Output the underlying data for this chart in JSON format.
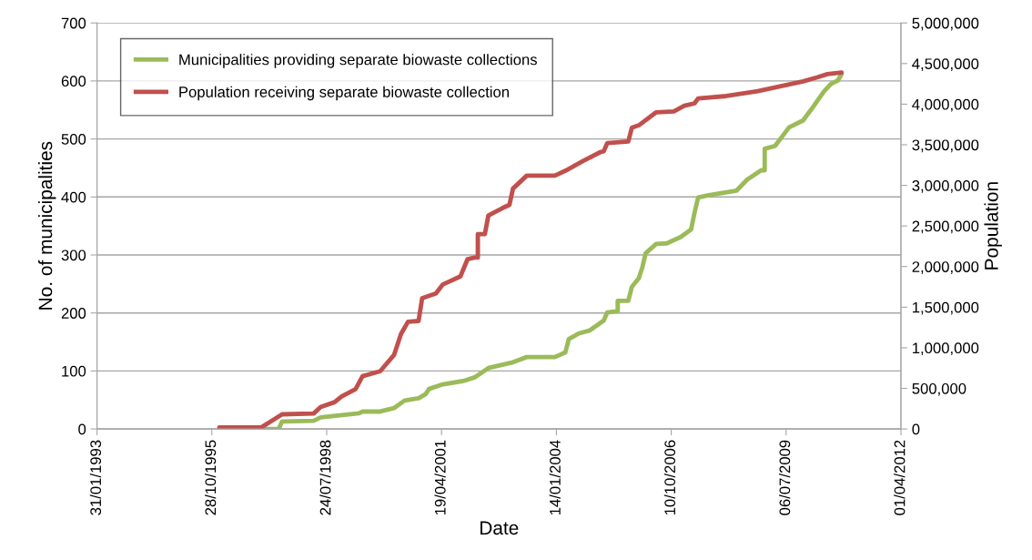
{
  "chart_data": {
    "type": "line",
    "xlabel": "Date",
    "ylabel": "No. of municipalities",
    "y2label": "Population",
    "xlim": [
      "1993-01-31",
      "2012-04-01"
    ],
    "xticks": [
      {
        "value": "1993-01-31",
        "label": "31/01/1993"
      },
      {
        "value": "1995-10-28",
        "label": "28/10/1995"
      },
      {
        "value": "1998-07-24",
        "label": "24/07/1998"
      },
      {
        "value": "2001-04-19",
        "label": "19/04/2001"
      },
      {
        "value": "2004-01-14",
        "label": "14/01/2004"
      },
      {
        "value": "2006-10-10",
        "label": "10/10/2006"
      },
      {
        "value": "2009-07-06",
        "label": "06/07/2009"
      },
      {
        "value": "2012-04-01",
        "label": "01/04/2012"
      }
    ],
    "ylim": [
      0,
      700
    ],
    "yticks": [
      0,
      100,
      200,
      300,
      400,
      500,
      600,
      700
    ],
    "y2lim": [
      0,
      5000000
    ],
    "y2ticks": [
      0,
      {
        "value": 500000,
        "label": "500,000"
      },
      {
        "value": 1000000,
        "label": "1,000,000"
      },
      {
        "value": 1500000,
        "label": "1,500,000"
      },
      {
        "value": 2000000,
        "label": "2,000,000"
      },
      {
        "value": 2500000,
        "label": "2,500,000"
      },
      {
        "value": 3000000,
        "label": "3,000,000"
      },
      {
        "value": 3500000,
        "label": "3,500,000"
      },
      {
        "value": 4000000,
        "label": "4,000,000"
      },
      {
        "value": 4500000,
        "label": "4,500,000"
      },
      {
        "value": 5000000,
        "label": "5,000,000"
      }
    ],
    "grid": "y",
    "legend": "upper left",
    "marker": "none",
    "line_style": "solid",
    "series": [
      {
        "name": "Municipalities providing separate biowaste collections",
        "color": "#9bbb59",
        "axis": "y",
        "x": [
          "1996-01",
          "1997-06",
          "1997-07",
          "1998-04",
          "1998-06",
          "1999-05",
          "1999-06",
          "1999-11",
          "2000-03",
          "2000-06",
          "2000-10",
          "2000-12",
          "2001-01",
          "2001-05",
          "2001-11",
          "2002-02",
          "2002-06",
          "2003-01",
          "2003-05",
          "2004-01",
          "2004-04",
          "2004-05",
          "2004-08",
          "2004-11",
          "2005-03",
          "2005-04",
          "2005-07",
          "2005-07",
          "2005-10",
          "2005-11",
          "2006-01",
          "2006-02",
          "2006-03",
          "2006-06",
          "2006-09",
          "2007-01",
          "2007-04",
          "2007-05",
          "2007-06",
          "2007-09",
          "2008-05",
          "2008-08",
          "2008-12",
          "2009-01",
          "2009-01",
          "2009-04",
          "2009-08",
          "2009-12",
          "2010-03",
          "2010-06",
          "2010-08",
          "2010-10",
          "2010-11"
        ],
        "values": [
          0,
          0,
          13,
          14,
          20,
          27,
          30,
          30,
          36,
          49,
          53,
          60,
          69,
          77,
          83,
          89,
          105,
          115,
          124,
          124,
          132,
          155,
          165,
          170,
          187,
          201,
          203,
          221,
          221,
          245,
          260,
          279,
          303,
          319,
          320,
          331,
          344,
          373,
          399,
          403,
          411,
          430,
          446,
          446,
          483,
          488,
          520,
          532,
          556,
          582,
          595,
          601,
          612
        ]
      },
      {
        "name": "Population receiving separate biowaste collection",
        "color": "#c0504d",
        "axis": "y2",
        "x": [
          "1996-01",
          "1997-01",
          "1997-07",
          "1998-04",
          "1998-06",
          "1998-10",
          "1998-12",
          "1999-04",
          "1999-06",
          "1999-11",
          "2000-03",
          "2000-05",
          "2000-07",
          "2000-10",
          "2000-11",
          "2001-03",
          "2001-05",
          "2001-10",
          "2001-12",
          "2002-02",
          "2002-03",
          "2002-03",
          "2002-05",
          "2002-06",
          "2002-10",
          "2002-12",
          "2003-01",
          "2003-05",
          "2004-01",
          "2004-04",
          "2004-09",
          "2005-02",
          "2005-03",
          "2005-04",
          "2005-10",
          "2005-11",
          "2006-01",
          "2006-06",
          "2006-11",
          "2007-02",
          "2007-05",
          "2007-06",
          "2008-02",
          "2008-11",
          "2009-12",
          "2010-04",
          "2010-07",
          "2010-11"
        ],
        "values": [
          20000,
          20000,
          180000,
          190000,
          270000,
          330000,
          400000,
          490000,
          650000,
          710000,
          910000,
          1170000,
          1320000,
          1330000,
          1610000,
          1670000,
          1780000,
          1880000,
          2090000,
          2110000,
          2110000,
          2400000,
          2400000,
          2630000,
          2720000,
          2760000,
          2960000,
          3120000,
          3120000,
          3180000,
          3300000,
          3410000,
          3420000,
          3520000,
          3540000,
          3710000,
          3740000,
          3900000,
          3910000,
          3980000,
          4010000,
          4070000,
          4100000,
          4160000,
          4280000,
          4330000,
          4370000,
          4390000
        ]
      }
    ]
  }
}
